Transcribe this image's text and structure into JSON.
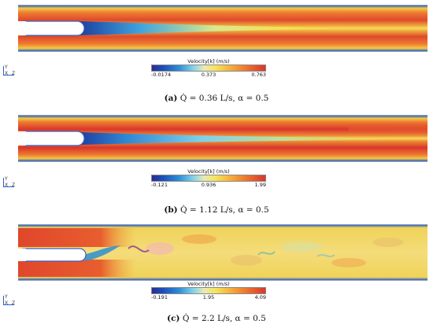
{
  "panels": [
    {
      "legend": {
        "title": "Velocity[k] (m/s)",
        "min": "-0.0174",
        "mid": "0.373",
        "max": "0.763"
      },
      "caption": {
        "tag": "(a)",
        "text": "Q̇ = 0.36 L/s, α = 0.5"
      },
      "axes": {
        "y": "Y",
        "x": "X",
        "z": "Z"
      }
    },
    {
      "legend": {
        "title": "Velocity[k] (m/s)",
        "min": "-0.121",
        "mid": "0.936",
        "max": "1.99"
      },
      "caption": {
        "tag": "(b)",
        "text": "Q̇ = 1.12 L/s, α = 0.5"
      },
      "axes": {
        "y": "Y",
        "x": "X",
        "z": "Z"
      }
    },
    {
      "legend": {
        "title": "Velocity[k] (m/s)",
        "min": "-0.191",
        "mid": "1.95",
        "max": "4.09"
      },
      "caption": {
        "tag": "(c)",
        "text": "Q̇ = 2.2 L/s, α = 0.5"
      },
      "axes": {
        "y": "Y",
        "x": "X",
        "z": "Z"
      }
    }
  ],
  "colors": {
    "low": "#2b2d91",
    "mid": "#f4e55b",
    "high": "#d9362b"
  }
}
